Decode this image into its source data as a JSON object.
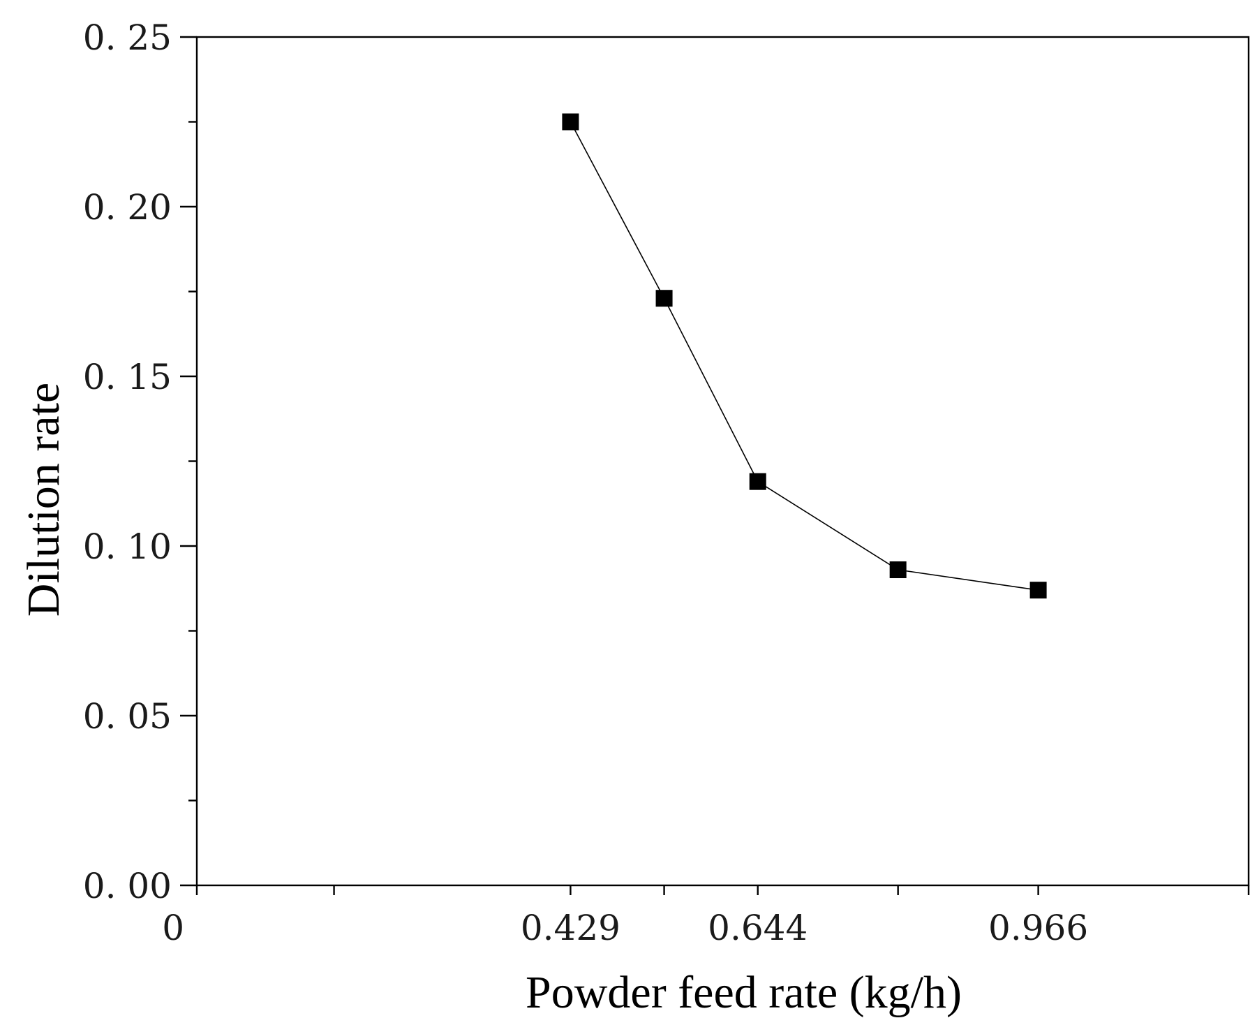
{
  "chart_data": {
    "type": "line",
    "title": "",
    "xlabel": "Powder feed rate (kg/h)",
    "ylabel": "Dilution rate",
    "xlim": [
      0,
      1.2075
    ],
    "ylim": [
      0,
      0.25
    ],
    "x_ticks": [
      0,
      0.1575,
      0.429,
      0.5365,
      0.644,
      0.805,
      0.966,
      1.2075
    ],
    "x_tick_labels": [
      {
        "value": 0,
        "label": "0"
      },
      {
        "value": 0.429,
        "label": "0.429"
      },
      {
        "value": 0.644,
        "label": "0.644"
      },
      {
        "value": 0.966,
        "label": "0.966"
      }
    ],
    "y_major_ticks": [
      0,
      0.05,
      0.1,
      0.15,
      0.2,
      0.25
    ],
    "y_tick_labels": [
      "0. 00",
      "0. 05",
      "0. 10",
      "0. 15",
      "0. 20",
      "0. 25"
    ],
    "y_minor_ticks": [
      0.025,
      0.075,
      0.125,
      0.175,
      0.225
    ],
    "grid": false,
    "series": [
      {
        "name": "Dilution rate",
        "marker": "square",
        "color": "#000000",
        "x": [
          0.429,
          0.5365,
          0.644,
          0.805,
          0.966
        ],
        "y": [
          0.225,
          0.173,
          0.119,
          0.093,
          0.087
        ]
      }
    ]
  }
}
